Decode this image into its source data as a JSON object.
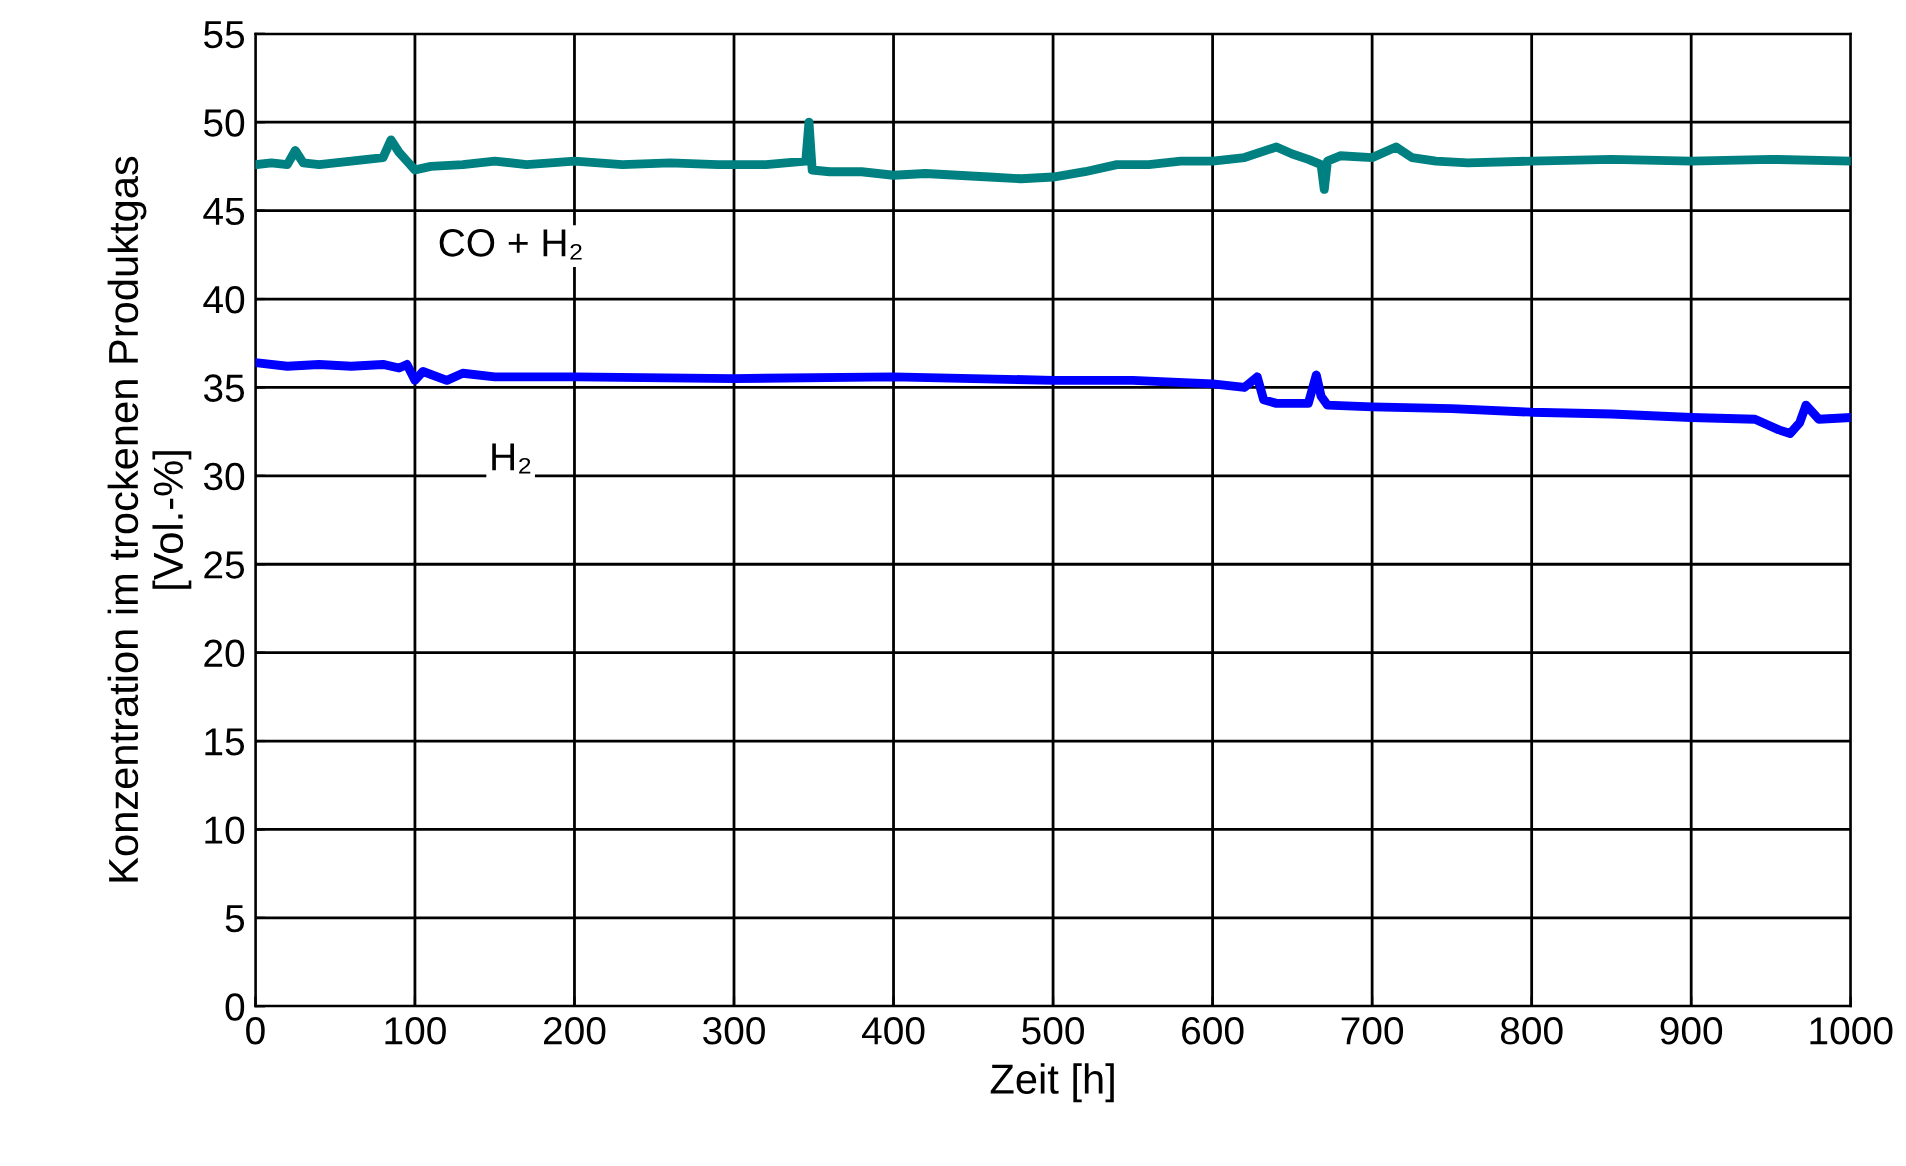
{
  "chart_data": {
    "type": "line",
    "xlabel": "Zeit [h]",
    "ylabel": "Konzentration im trockenen Produktgas\n[Vol.-%]",
    "xlim": [
      0,
      1000
    ],
    "ylim": [
      0,
      55
    ],
    "xticks": [
      0,
      100,
      200,
      300,
      400,
      500,
      600,
      700,
      800,
      900,
      1000
    ],
    "yticks": [
      0,
      5,
      10,
      15,
      20,
      25,
      30,
      35,
      40,
      45,
      50,
      55
    ],
    "grid": true,
    "legend": false,
    "marker": "none",
    "line_style": "solid",
    "series": [
      {
        "name": "CO + H₂",
        "color": "#008080",
        "x": [
          0,
          10,
          20,
          25,
          30,
          40,
          60,
          80,
          85,
          90,
          95,
          100,
          110,
          130,
          150,
          170,
          200,
          230,
          260,
          290,
          320,
          345,
          347,
          349,
          360,
          380,
          400,
          420,
          440,
          460,
          480,
          500,
          520,
          540,
          560,
          580,
          600,
          620,
          640,
          650,
          660,
          668,
          670,
          672,
          680,
          700,
          715,
          725,
          740,
          760,
          800,
          850,
          900,
          950,
          1000
        ],
        "values": [
          47.6,
          47.7,
          47.6,
          48.4,
          47.7,
          47.6,
          47.8,
          48.0,
          49.0,
          48.3,
          47.8,
          47.3,
          47.5,
          47.6,
          47.8,
          47.6,
          47.8,
          47.6,
          47.7,
          47.6,
          47.6,
          47.8,
          50.0,
          47.3,
          47.2,
          47.2,
          47.0,
          47.1,
          47.0,
          46.9,
          46.8,
          46.9,
          47.2,
          47.6,
          47.6,
          47.8,
          47.8,
          48.0,
          48.6,
          48.2,
          47.9,
          47.6,
          46.2,
          47.8,
          48.1,
          48.0,
          48.6,
          48.0,
          47.8,
          47.7,
          47.8,
          47.9,
          47.8,
          47.9,
          47.8
        ]
      },
      {
        "name": "H₂",
        "color": "#0000ff",
        "x": [
          0,
          20,
          40,
          60,
          80,
          90,
          95,
          100,
          105,
          120,
          130,
          150,
          200,
          300,
          400,
          500,
          550,
          600,
          620,
          628,
          632,
          640,
          660,
          665,
          668,
          672,
          700,
          750,
          800,
          850,
          900,
          940,
          955,
          962,
          968,
          972,
          980,
          1000
        ],
        "values": [
          36.4,
          36.2,
          36.3,
          36.2,
          36.3,
          36.1,
          36.3,
          35.4,
          35.9,
          35.4,
          35.8,
          35.6,
          35.6,
          35.5,
          35.6,
          35.4,
          35.4,
          35.2,
          35.0,
          35.6,
          34.3,
          34.1,
          34.1,
          35.7,
          34.5,
          34.0,
          33.9,
          33.8,
          33.6,
          33.5,
          33.3,
          33.2,
          32.6,
          32.4,
          33.0,
          34.0,
          33.2,
          33.3
        ]
      }
    ]
  }
}
